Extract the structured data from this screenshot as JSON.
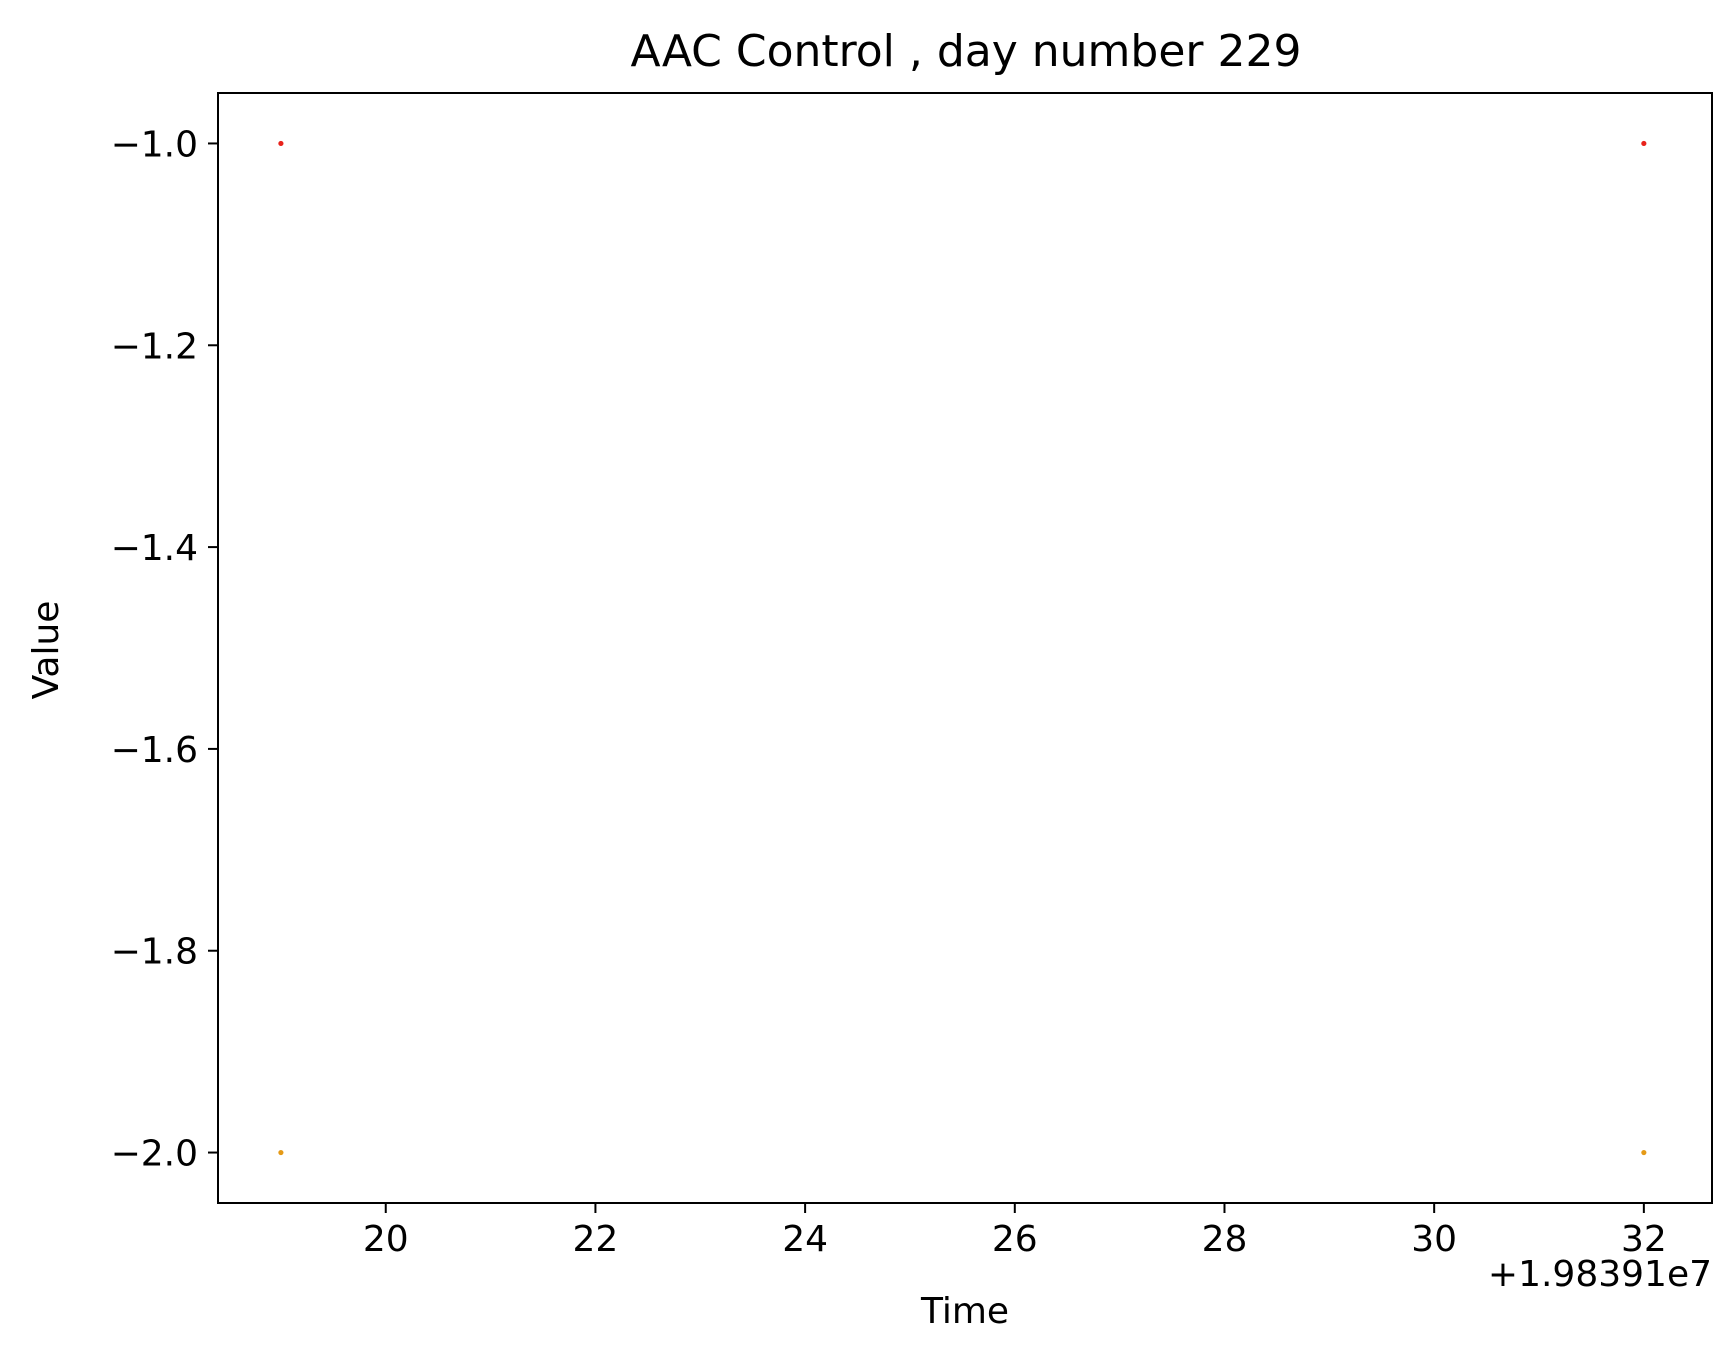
{
  "chart_data": {
    "type": "scatter",
    "title": "AAC Control , day number 229",
    "xlabel": "Time",
    "ylabel": "Value",
    "x_offset_label": "+1.98391e7",
    "xlim": [
      18.4,
      32.65
    ],
    "ylim": [
      -2.05,
      -0.95
    ],
    "x_ticks": [
      20,
      22,
      24,
      26,
      28,
      30,
      32
    ],
    "x_tick_labels": [
      "20",
      "22",
      "24",
      "26",
      "28",
      "30",
      "32"
    ],
    "y_ticks": [
      -1.0,
      -1.2,
      -1.4,
      -1.6,
      -1.8,
      -2.0
    ],
    "y_tick_labels": [
      "−1.0",
      "−1.2",
      "−1.4",
      "−1.6",
      "−1.8",
      "−2.0"
    ],
    "grid": false,
    "legend": false,
    "series": [
      {
        "color": "#e8221b",
        "points": [
          {
            "x": 19,
            "y": -1.0
          },
          {
            "x": 32,
            "y": -1.0
          }
        ]
      },
      {
        "color": "#e59a16",
        "points": [
          {
            "x": 19,
            "y": -2.0
          },
          {
            "x": 32,
            "y": -2.0
          }
        ]
      }
    ]
  }
}
